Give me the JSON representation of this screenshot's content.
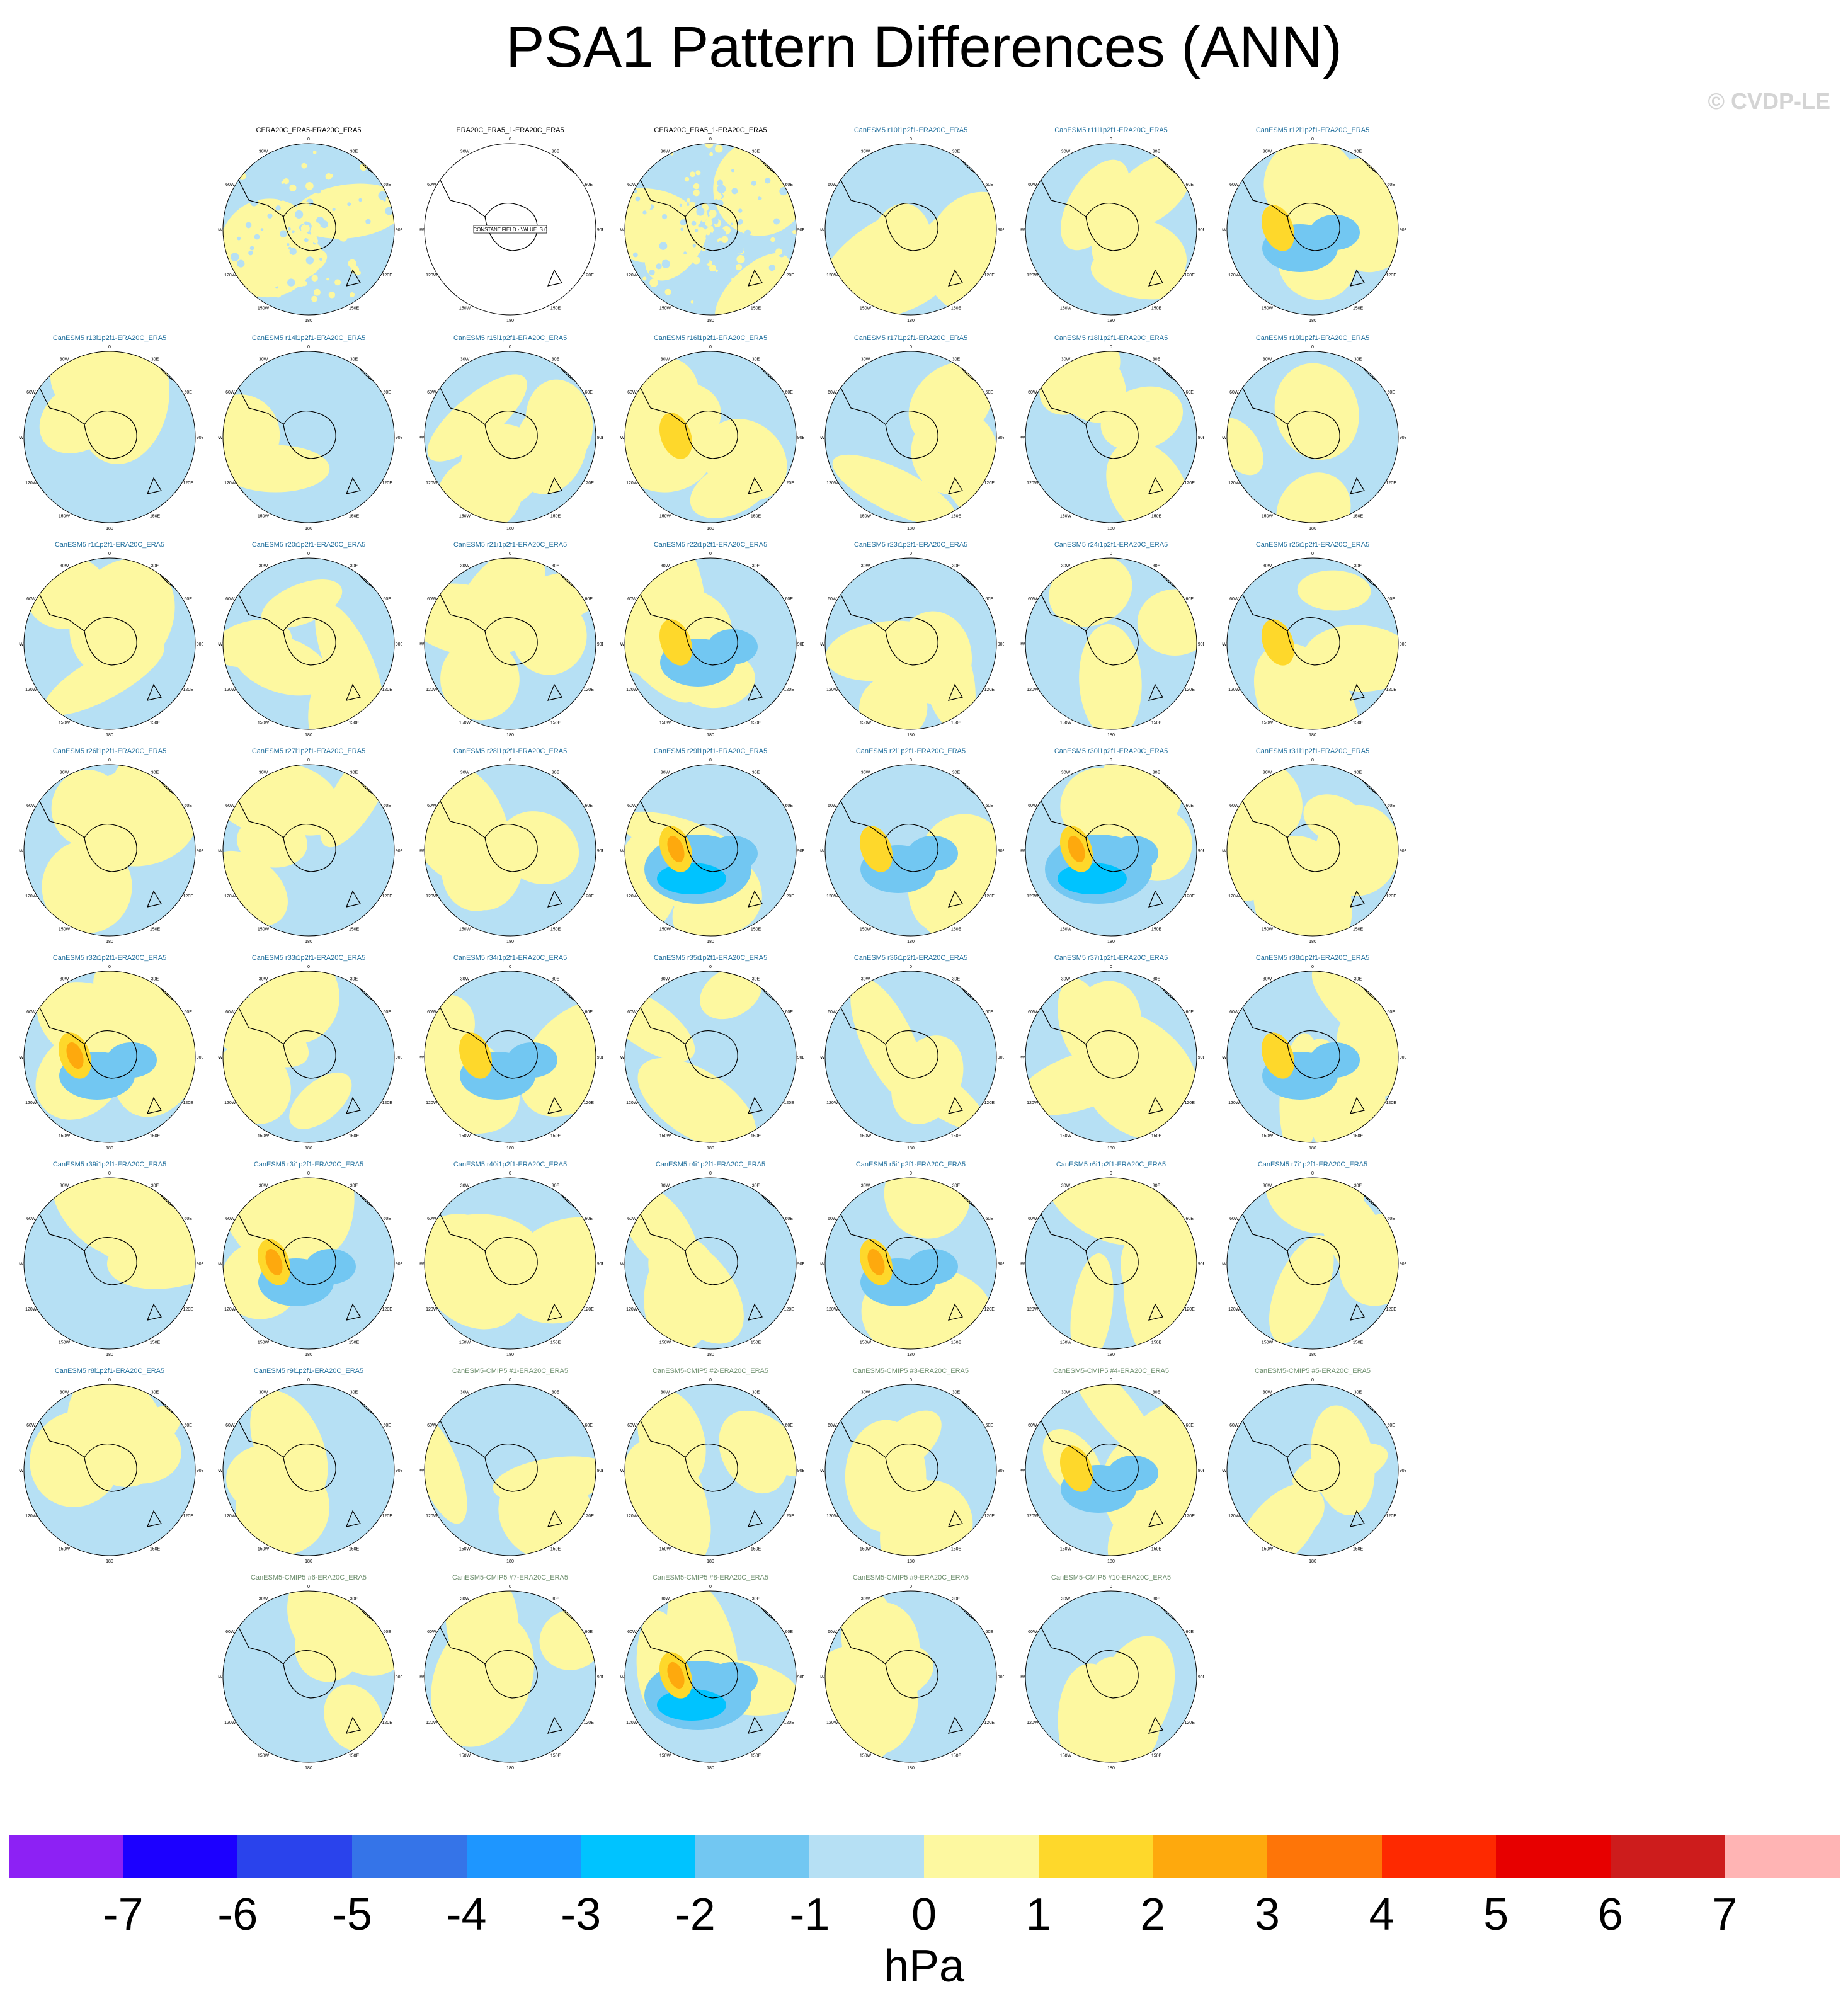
{
  "title": "PSA1 Pattern Differences (ANN)",
  "copyright": "© CVDP-LE",
  "colors": {
    "land": "#000000",
    "title_obs": "#000000",
    "title_canesm": "#1f6e9c",
    "title_cmip": "#6e8f6e"
  },
  "chart_data": {
    "type": "heatmap",
    "projection": "south polar stereographic",
    "units": "hPa",
    "lon_labels": [
      "0",
      "30E",
      "60E",
      "90E",
      "120E",
      "150E",
      "180",
      "150W",
      "120W",
      "90W",
      "60W",
      "30W"
    ],
    "constant_field_label": "CONSTANT FIELD - VALUE IS 0",
    "colorbar": {
      "ticks": [
        "-7",
        "-6",
        "-5",
        "-4",
        "-3",
        "-2",
        "-1",
        "0",
        "1",
        "2",
        "3",
        "4",
        "5",
        "6",
        "7"
      ],
      "colors": [
        "#8d21f4",
        "#1c00ff",
        "#2a43ec",
        "#3574e8",
        "#1e96ff",
        "#00c3ff",
        "#72c7f2",
        "#b6e0f4",
        "#fdf8a0",
        "#fed82b",
        "#fea90d",
        "#fe7508",
        "#fe2900",
        "#e70000",
        "#cd1c1c",
        "#ffb4b4"
      ]
    },
    "panels": [
      {
        "title": "CERA20C_ERA5-ERA20C_ERA5",
        "group": "obs",
        "style": "noisy",
        "warm": null
      },
      {
        "title": "ERA20C_ERA5_1-ERA20C_ERA5",
        "group": "obs",
        "style": "constant",
        "warm": null
      },
      {
        "title": "CERA20C_ERA5_1-ERA20C_ERA5",
        "group": "obs",
        "style": "noisy",
        "warm": null
      },
      {
        "title": "CanESM5 r10i1p2f1-ERA20C_ERA5",
        "group": "canesm",
        "style": "weak",
        "warm": null
      },
      {
        "title": "CanESM5 r11i1p2f1-ERA20C_ERA5",
        "group": "canesm",
        "style": "weak",
        "warm": null
      },
      {
        "title": "CanESM5 r12i1p2f1-ERA20C_ERA5",
        "group": "canesm",
        "style": "moderate",
        "warm": 1.8
      },
      {
        "title": "CanESM5 r13i1p2f1-ERA20C_ERA5",
        "group": "canesm",
        "style": "weak",
        "warm": null
      },
      {
        "title": "CanESM5 r14i1p2f1-ERA20C_ERA5",
        "group": "canesm",
        "style": "weak",
        "warm": null
      },
      {
        "title": "CanESM5 r15i1p2f1-ERA20C_ERA5",
        "group": "canesm",
        "style": "weak",
        "warm": null
      },
      {
        "title": "CanESM5 r16i1p2f1-ERA20C_ERA5",
        "group": "canesm",
        "style": "weak",
        "warm": 1.3
      },
      {
        "title": "CanESM5 r17i1p2f1-ERA20C_ERA5",
        "group": "canesm",
        "style": "weak",
        "warm": null
      },
      {
        "title": "CanESM5 r18i1p2f1-ERA20C_ERA5",
        "group": "canesm",
        "style": "weak",
        "warm": null
      },
      {
        "title": "CanESM5 r19i1p2f1-ERA20C_ERA5",
        "group": "canesm",
        "style": "weak",
        "warm": null
      },
      {
        "title": "CanESM5 r1i1p2f1-ERA20C_ERA5",
        "group": "canesm",
        "style": "weak",
        "warm": null
      },
      {
        "title": "CanESM5 r20i1p2f1-ERA20C_ERA5",
        "group": "canesm",
        "style": "weak",
        "warm": null
      },
      {
        "title": "CanESM5 r21i1p2f1-ERA20C_ERA5",
        "group": "canesm",
        "style": "weak",
        "warm": null
      },
      {
        "title": "CanESM5 r22i1p2f1-ERA20C_ERA5",
        "group": "canesm",
        "style": "moderate",
        "warm": 2.0
      },
      {
        "title": "CanESM5 r23i1p2f1-ERA20C_ERA5",
        "group": "canesm",
        "style": "weak",
        "warm": null
      },
      {
        "title": "CanESM5 r24i1p2f1-ERA20C_ERA5",
        "group": "canesm",
        "style": "weak",
        "warm": null
      },
      {
        "title": "CanESM5 r25i1p2f1-ERA20C_ERA5",
        "group": "canesm",
        "style": "weak",
        "warm": 1.8
      },
      {
        "title": "CanESM5 r26i1p2f1-ERA20C_ERA5",
        "group": "canesm",
        "style": "weak",
        "warm": null
      },
      {
        "title": "CanESM5 r27i1p2f1-ERA20C_ERA5",
        "group": "canesm",
        "style": "weak",
        "warm": null
      },
      {
        "title": "CanESM5 r28i1p2f1-ERA20C_ERA5",
        "group": "canesm",
        "style": "weak",
        "warm": null
      },
      {
        "title": "CanESM5 r29i1p2f1-ERA20C_ERA5",
        "group": "canesm",
        "style": "strong",
        "warm": 3.0
      },
      {
        "title": "CanESM5 r2i1p2f1-ERA20C_ERA5",
        "group": "canesm",
        "style": "moderate",
        "warm": 2.0
      },
      {
        "title": "CanESM5 r30i1p2f1-ERA20C_ERA5",
        "group": "canesm",
        "style": "strong",
        "warm": 3.0
      },
      {
        "title": "CanESM5 r31i1p2f1-ERA20C_ERA5",
        "group": "canesm",
        "style": "weak",
        "warm": null
      },
      {
        "title": "CanESM5 r32i1p2f1-ERA20C_ERA5",
        "group": "canesm",
        "style": "moderate",
        "warm": 2.5
      },
      {
        "title": "CanESM5 r33i1p2f1-ERA20C_ERA5",
        "group": "canesm",
        "style": "weak",
        "warm": null
      },
      {
        "title": "CanESM5 r34i1p2f1-ERA20C_ERA5",
        "group": "canesm",
        "style": "moderate",
        "warm": 2.3
      },
      {
        "title": "CanESM5 r35i1p2f1-ERA20C_ERA5",
        "group": "canesm",
        "style": "weak",
        "warm": null
      },
      {
        "title": "CanESM5 r36i1p2f1-ERA20C_ERA5",
        "group": "canesm",
        "style": "weak",
        "warm": null
      },
      {
        "title": "CanESM5 r37i1p2f1-ERA20C_ERA5",
        "group": "canesm",
        "style": "weak",
        "warm": null
      },
      {
        "title": "CanESM5 r38i1p2f1-ERA20C_ERA5",
        "group": "canesm",
        "style": "moderate",
        "warm": 1.8
      },
      {
        "title": "CanESM5 r39i1p2f1-ERA20C_ERA5",
        "group": "canesm",
        "style": "weak",
        "warm": null
      },
      {
        "title": "CanESM5 r3i1p2f1-ERA20C_ERA5",
        "group": "canesm",
        "style": "moderate",
        "warm": 2.5
      },
      {
        "title": "CanESM5 r40i1p2f1-ERA20C_ERA5",
        "group": "canesm",
        "style": "weak",
        "warm": null
      },
      {
        "title": "CanESM5 r4i1p2f1-ERA20C_ERA5",
        "group": "canesm",
        "style": "weak",
        "warm": null
      },
      {
        "title": "CanESM5 r5i1p2f1-ERA20C_ERA5",
        "group": "canesm",
        "style": "moderate",
        "warm": 2.5
      },
      {
        "title": "CanESM5 r6i1p2f1-ERA20C_ERA5",
        "group": "canesm",
        "style": "weak",
        "warm": null
      },
      {
        "title": "CanESM5 r7i1p2f1-ERA20C_ERA5",
        "group": "canesm",
        "style": "weak",
        "warm": null
      },
      {
        "title": "CanESM5 r8i1p2f1-ERA20C_ERA5",
        "group": "canesm",
        "style": "weak",
        "warm": null
      },
      {
        "title": "CanESM5 r9i1p2f1-ERA20C_ERA5",
        "group": "canesm",
        "style": "weak",
        "warm": null
      },
      {
        "title": "CanESM5-CMIP5 #1-ERA20C_ERA5",
        "group": "cmip",
        "style": "weak",
        "warm": null
      },
      {
        "title": "CanESM5-CMIP5 #2-ERA20C_ERA5",
        "group": "cmip",
        "style": "weak",
        "warm": null
      },
      {
        "title": "CanESM5-CMIP5 #3-ERA20C_ERA5",
        "group": "cmip",
        "style": "weak",
        "warm": null
      },
      {
        "title": "CanESM5-CMIP5 #4-ERA20C_ERA5",
        "group": "cmip",
        "style": "moderate",
        "warm": 1.5
      },
      {
        "title": "CanESM5-CMIP5 #5-ERA20C_ERA5",
        "group": "cmip",
        "style": "weak",
        "warm": null
      },
      {
        "title": "CanESM5-CMIP5 #6-ERA20C_ERA5",
        "group": "cmip",
        "style": "weak",
        "warm": null
      },
      {
        "title": "CanESM5-CMIP5 #7-ERA20C_ERA5",
        "group": "cmip",
        "style": "weak",
        "warm": null
      },
      {
        "title": "CanESM5-CMIP5 #8-ERA20C_ERA5",
        "group": "cmip",
        "style": "strong",
        "warm": 3.0
      },
      {
        "title": "CanESM5-CMIP5 #9-ERA20C_ERA5",
        "group": "cmip",
        "style": "weak",
        "warm": null
      },
      {
        "title": "CanESM5-CMIP5 #10-ERA20C_ERA5",
        "group": "cmip",
        "style": "weak",
        "warm": null
      }
    ]
  }
}
